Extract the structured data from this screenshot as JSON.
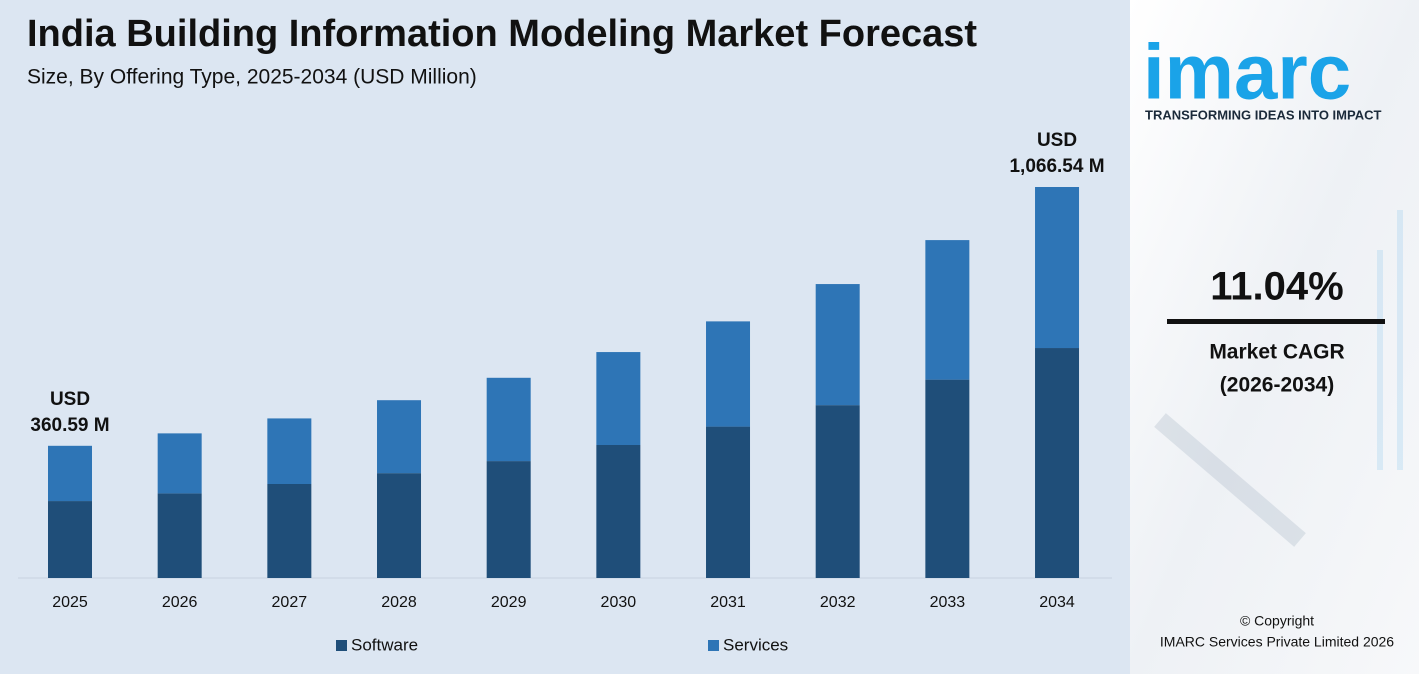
{
  "chart_data": {
    "type": "bar",
    "stacked": true,
    "title": "India Building Information Modeling Market Forecast",
    "subtitle": "Size, By Offering Type, 2025-2034 (USD Million)",
    "categories": [
      "2025",
      "2026",
      "2027",
      "2028",
      "2029",
      "2030",
      "2031",
      "2032",
      "2033",
      "2034"
    ],
    "series": [
      {
        "name": "Software",
        "color": "#1f4e79",
        "values": [
          209.87,
          230.8,
          256.4,
          286.0,
          318.9,
          362.8,
          413.0,
          471.5,
          541.1,
          627.3
        ]
      },
      {
        "name": "Services",
        "color": "#2e75b6",
        "values": [
          150.72,
          163.7,
          178.9,
          199.0,
          227.2,
          253.5,
          287.0,
          330.3,
          380.6,
          439.24
        ]
      }
    ],
    "annotations": [
      {
        "category": "2025",
        "lines": [
          "USD",
          "360.59 M"
        ]
      },
      {
        "category": "2034",
        "lines": [
          "USD",
          "1,066.54 M"
        ]
      }
    ],
    "legend": "bottom"
  },
  "side_panel": {
    "logo": "imarc",
    "tagline": "TRANSFORMING IDEAS INTO IMPACT",
    "cagr": "11.04%",
    "cagr_label": "Market CAGR",
    "cagr_period": "(2026-2034)",
    "copyright": "© Copyright",
    "company": "IMARC Services Private Limited 2026"
  }
}
